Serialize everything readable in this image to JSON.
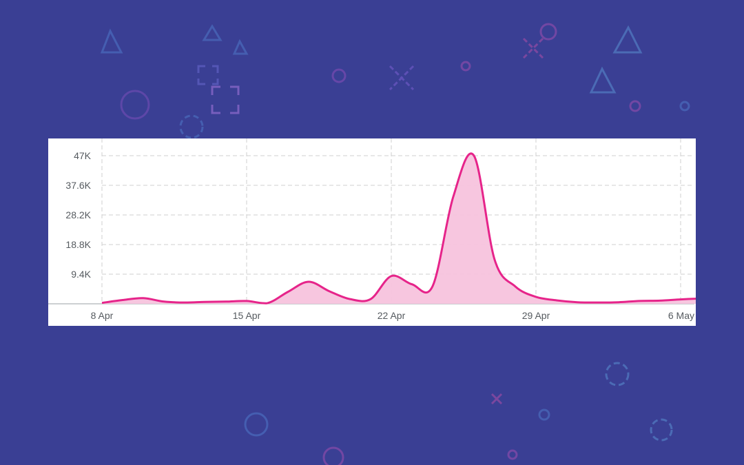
{
  "colors": {
    "background": "#3a3f94",
    "series_line": "#e6248a",
    "series_fill": "#f7c3dd",
    "grid": "#cfcfcf",
    "tick_text": "#555a5f"
  },
  "decoration_icons": [
    "triangle-icon",
    "circle-icon",
    "cross-icon",
    "square-bracket-icon",
    "dashed-circle-icon"
  ],
  "chart_data": {
    "type": "area",
    "title": "",
    "xlabel": "",
    "ylabel": "",
    "x_tick_labels": [
      "8 Apr",
      "15 Apr",
      "22 Apr",
      "29 Apr",
      "6 May"
    ],
    "y_tick_values": [
      9400,
      18800,
      28200,
      37600,
      47000
    ],
    "y_tick_labels": [
      "9.4K",
      "18.8K",
      "28.2K",
      "37.6K",
      "47K"
    ],
    "ylim": [
      0,
      47000
    ],
    "grid": true,
    "legend": "none",
    "series": [
      {
        "x": [
          "8 Apr",
          "9 Apr",
          "10 Apr",
          "11 Apr",
          "12 Apr",
          "13 Apr",
          "14 Apr",
          "15 Apr",
          "16 Apr",
          "17 Apr",
          "18 Apr",
          "19 Apr",
          "20 Apr",
          "21 Apr",
          "22 Apr",
          "23 Apr",
          "24 Apr",
          "25 Apr",
          "26 Apr",
          "27 Apr",
          "28 Apr",
          "29 Apr",
          "30 Apr",
          "1 May",
          "2 May",
          "3 May",
          "4 May",
          "5 May",
          "6 May",
          "7 May"
        ],
        "values": [
          300,
          1200,
          1800,
          700,
          400,
          600,
          700,
          900,
          200,
          3800,
          7000,
          4000,
          1500,
          1500,
          8800,
          6200,
          5600,
          34000,
          47000,
          14000,
          5500,
          2200,
          1100,
          500,
          400,
          500,
          900,
          1000,
          1400,
          1700
        ]
      }
    ]
  }
}
